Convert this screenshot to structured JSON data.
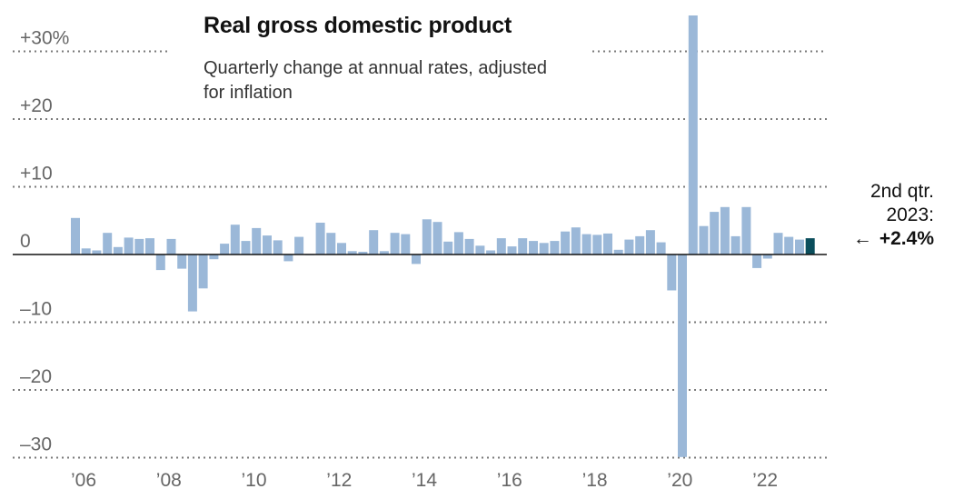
{
  "title": "Real gross domestic product",
  "subtitle": "Quarterly change at annual rates, adjusted for inflation",
  "annotation": {
    "line1": "2nd qtr.",
    "line2": "2023:",
    "arrow": "←",
    "value": "+2.4%"
  },
  "colors": {
    "bar": "#9bb8d8",
    "highlight": "#0b4e5c"
  },
  "chart_data": {
    "type": "bar",
    "title": "Real gross domestic product",
    "subtitle": "Quarterly change at annual rates, adjusted for inflation",
    "ylim": [
      -30,
      35
    ],
    "yticks": [
      {
        "value": 30,
        "label": "+30%"
      },
      {
        "value": 20,
        "label": "+20"
      },
      {
        "value": 10,
        "label": "+10"
      },
      {
        "value": 0,
        "label": "0"
      },
      {
        "value": -10,
        "label": "–10"
      },
      {
        "value": -20,
        "label": "–20"
      },
      {
        "value": -30,
        "label": "–30"
      }
    ],
    "xticks": [
      {
        "year": 2006,
        "label": "’06"
      },
      {
        "year": 2008,
        "label": "’08"
      },
      {
        "year": 2010,
        "label": "’10"
      },
      {
        "year": 2012,
        "label": "’12"
      },
      {
        "year": 2014,
        "label": "’14"
      },
      {
        "year": 2016,
        "label": "’16"
      },
      {
        "year": 2018,
        "label": "’18"
      },
      {
        "year": 2020,
        "label": "’20"
      },
      {
        "year": 2022,
        "label": "’22"
      }
    ],
    "first_quarter": "2006 Q1",
    "highlight": "2023 Q2",
    "values": [
      5.4,
      0.9,
      0.6,
      3.2,
      1.1,
      2.5,
      2.3,
      2.4,
      -2.3,
      2.3,
      -2.1,
      -8.4,
      -5.0,
      -0.7,
      1.6,
      4.4,
      2.0,
      3.9,
      2.8,
      2.1,
      -1.0,
      2.6,
      -0.1,
      4.7,
      3.2,
      1.7,
      0.5,
      0.4,
      3.6,
      0.5,
      3.2,
      3.0,
      -1.4,
      5.2,
      4.8,
      1.9,
      3.3,
      2.3,
      1.3,
      0.6,
      2.4,
      1.2,
      2.4,
      2.0,
      1.7,
      2.0,
      3.4,
      4.0,
      3.0,
      2.9,
      3.1,
      0.7,
      2.2,
      2.7,
      3.6,
      1.8,
      -5.3,
      -29.9,
      35.3,
      4.2,
      6.3,
      7.0,
      2.7,
      7.0,
      -2.0,
      -0.6,
      3.2,
      2.6,
      2.2,
      2.4
    ]
  }
}
